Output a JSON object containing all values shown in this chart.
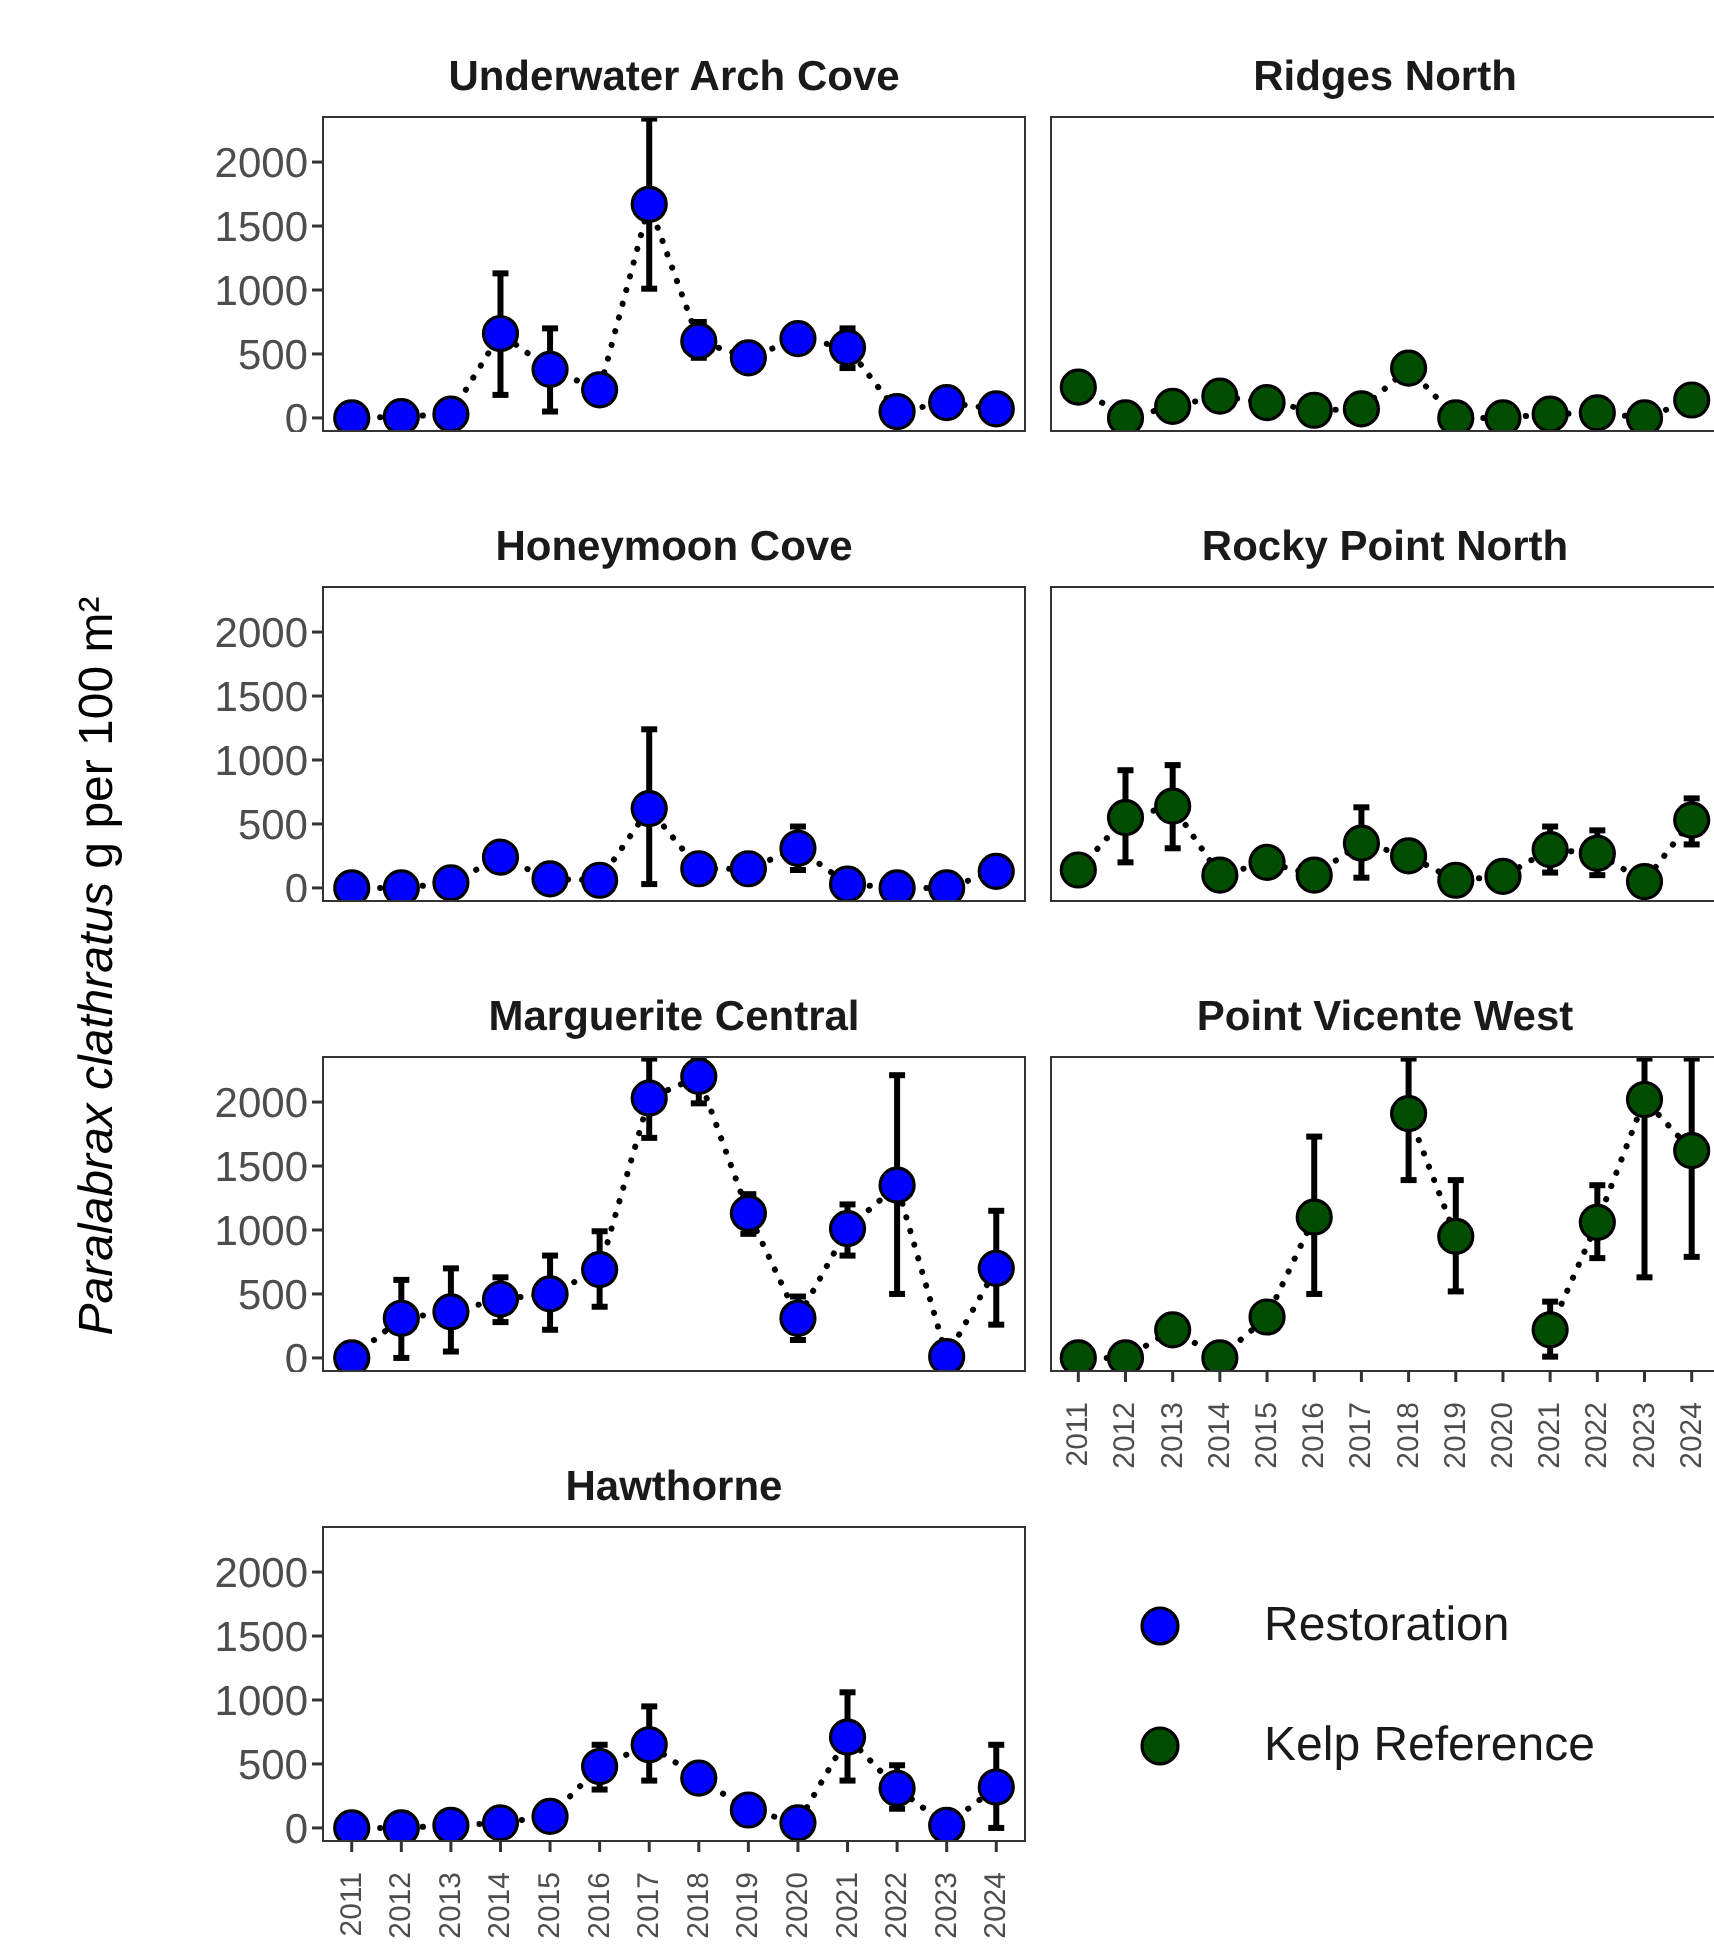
{
  "chart_data": [
    {
      "type": "line",
      "title": "Underwater Arch Cove",
      "ylabel": "Paralabrax clathratus g per 100 m²",
      "categories": [
        "2011",
        "2012",
        "2013",
        "2014",
        "2015",
        "2016",
        "2017",
        "2018",
        "2019",
        "2020",
        "2021",
        "2022",
        "2023",
        "2024"
      ],
      "ylim": [
        -110,
        2360
      ],
      "yticks": [
        0,
        500,
        1000,
        1500,
        2000
      ],
      "tick_labels": "y",
      "grid": false,
      "marker": "circle",
      "line_style": "dotted",
      "series": [
        {
          "name": "Restoration",
          "color": "#0000ff",
          "values": [
            0,
            10,
            30,
            660,
            380,
            220,
            1670,
            600,
            470,
            620,
            550,
            50,
            120,
            70
          ],
          "errors": [
            null,
            null,
            null,
            [
              180,
              1130
            ],
            [
              50,
              700
            ],
            null,
            [
              1010,
              2340
            ],
            [
              470,
              750
            ],
            null,
            null,
            [
              390,
              700
            ],
            null,
            null,
            null
          ]
        }
      ]
    },
    {
      "type": "line",
      "title": "Ridges North",
      "categories": [
        "2011",
        "2012",
        "2013",
        "2014",
        "2015",
        "2016",
        "2017",
        "2018",
        "2019",
        "2020",
        "2021",
        "2022",
        "2023",
        "2024"
      ],
      "ylim": [
        -110,
        2360
      ],
      "yticks": [
        0,
        500,
        1000,
        1500,
        2000
      ],
      "tick_labels": false,
      "grid": false,
      "marker": "circle",
      "line_style": "dotted",
      "series": [
        {
          "name": "Kelp Reference",
          "color": "#004d00",
          "values": [
            240,
            0,
            90,
            170,
            120,
            60,
            70,
            390,
            0,
            0,
            30,
            40,
            0,
            140
          ]
        }
      ]
    },
    {
      "type": "line",
      "title": "Honeymoon Cove",
      "categories": [
        "2011",
        "2012",
        "2013",
        "2014",
        "2015",
        "2016",
        "2017",
        "2018",
        "2019",
        "2020",
        "2021",
        "2022",
        "2023",
        "2024"
      ],
      "ylim": [
        -110,
        2360
      ],
      "yticks": [
        0,
        500,
        1000,
        1500,
        2000
      ],
      "tick_labels": "y",
      "grid": false,
      "marker": "circle",
      "line_style": "dotted",
      "series": [
        {
          "name": "Restoration",
          "color": "#0000ff",
          "values": [
            0,
            0,
            40,
            240,
            70,
            60,
            620,
            150,
            150,
            310,
            30,
            0,
            0,
            130
          ],
          "errors": [
            null,
            null,
            null,
            [
              140,
              340
            ],
            null,
            null,
            [
              30,
              1240
            ],
            null,
            null,
            [
              140,
              480
            ],
            null,
            null,
            null,
            null
          ]
        }
      ]
    },
    {
      "type": "line",
      "title": "Rocky Point North",
      "categories": [
        "2011",
        "2012",
        "2013",
        "2014",
        "2015",
        "2016",
        "2017",
        "2018",
        "2019",
        "2020",
        "2021",
        "2022",
        "2023",
        "2024"
      ],
      "ylim": [
        -110,
        2360
      ],
      "yticks": [
        0,
        500,
        1000,
        1500,
        2000
      ],
      "tick_labels": false,
      "grid": false,
      "marker": "circle",
      "line_style": "dotted",
      "series": [
        {
          "color": "#004d00",
          "values": [
            140,
            550,
            640,
            100,
            200,
            100,
            350,
            250,
            60,
            90,
            300,
            270,
            50,
            530
          ],
          "errors": [
            null,
            [
              200,
              920
            ],
            [
              310,
              960
            ],
            null,
            null,
            null,
            [
              80,
              630
            ],
            null,
            null,
            null,
            [
              120,
              480
            ],
            [
              100,
              450
            ],
            null,
            [
              340,
              700
            ]
          ]
        }
      ]
    },
    {
      "type": "line",
      "title": "Marguerite Central",
      "categories": [
        "2011",
        "2012",
        "2013",
        "2014",
        "2015",
        "2016",
        "2017",
        "2018",
        "2019",
        "2020",
        "2021",
        "2022",
        "2023",
        "2024"
      ],
      "ylim": [
        -110,
        2360
      ],
      "yticks": [
        0,
        500,
        1000,
        1500,
        2000
      ],
      "tick_labels": "y",
      "grid": false,
      "marker": "circle",
      "line_style": "dotted",
      "series": [
        {
          "name": "Restoration",
          "color": "#0000ff",
          "values": [
            0,
            310,
            360,
            460,
            500,
            690,
            2030,
            2200,
            1130,
            310,
            1010,
            1350,
            10,
            700
          ],
          "errors": [
            null,
            [
              0,
              610
            ],
            [
              50,
              700
            ],
            [
              280,
              630
            ],
            [
              220,
              800
            ],
            [
              400,
              990
            ],
            [
              1720,
              2340
            ],
            [
              1990,
              2340
            ],
            [
              970,
              1280
            ],
            [
              140,
              480
            ],
            [
              800,
              1200
            ],
            [
              500,
              2210
            ],
            null,
            [
              260,
              1150
            ]
          ]
        }
      ]
    },
    {
      "type": "line",
      "title": "Point Vicente West",
      "categories": [
        "2011",
        "2012",
        "2013",
        "2014",
        "2015",
        "2016",
        "2017",
        "2018",
        "2019",
        "2020",
        "2021",
        "2022",
        "2023",
        "2024"
      ],
      "ylim": [
        -110,
        2360
      ],
      "yticks": [
        0,
        500,
        1000,
        1500,
        2000
      ],
      "tick_labels": "x",
      "grid": false,
      "marker": "circle",
      "line_style": "dotted",
      "series": [
        {
          "color": "#004d00",
          "values": [
            0,
            0,
            220,
            0,
            320,
            1100,
            null,
            1910,
            950,
            null,
            220,
            1060,
            2020,
            1620
          ],
          "errors": [
            null,
            null,
            null,
            null,
            null,
            [
              500,
              1730
            ],
            null,
            [
              1390,
              2340
            ],
            [
              520,
              1390
            ],
            null,
            [
              10,
              440
            ],
            [
              780,
              1350
            ],
            [
              630,
              2340
            ],
            [
              790,
              2340
            ]
          ]
        }
      ]
    },
    {
      "type": "line",
      "title": "Hawthorne",
      "categories": [
        "2011",
        "2012",
        "2013",
        "2014",
        "2015",
        "2016",
        "2017",
        "2018",
        "2019",
        "2020",
        "2021",
        "2022",
        "2023",
        "2024"
      ],
      "ylim": [
        -110,
        2360
      ],
      "yticks": [
        0,
        500,
        1000,
        1500,
        2000
      ],
      "grid": false,
      "marker": "circle",
      "line_style": "dotted",
      "legend": "right",
      "series": [
        {
          "name": "Restoration",
          "color": "#0000ff",
          "values": [
            0,
            0,
            20,
            40,
            90,
            480,
            650,
            390,
            140,
            40,
            710,
            310,
            20,
            320
          ],
          "errors": [
            null,
            null,
            null,
            null,
            null,
            [
              300,
              650
            ],
            [
              370,
              950
            ],
            null,
            null,
            null,
            [
              370,
              1060
            ],
            [
              150,
              490
            ],
            null,
            [
              0,
              650
            ]
          ]
        }
      ]
    }
  ]
}
